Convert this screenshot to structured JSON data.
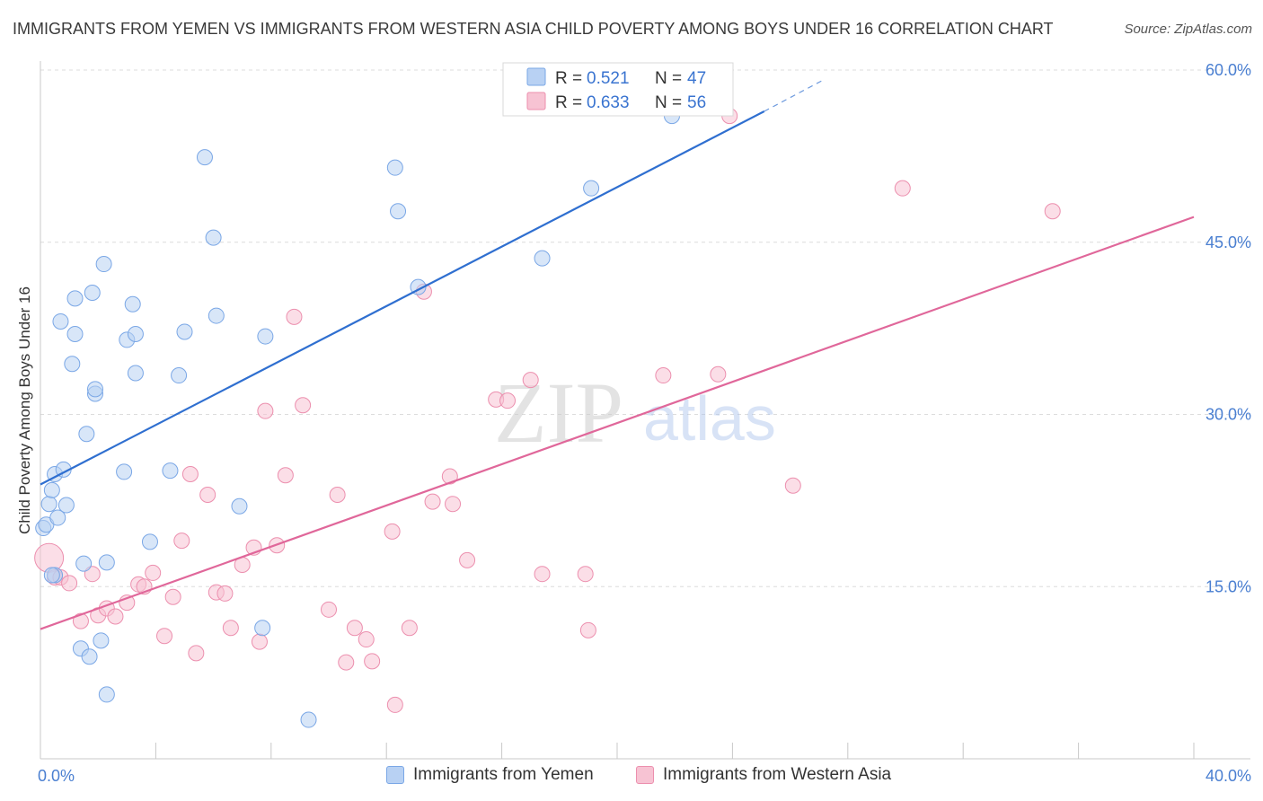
{
  "title": "IMMIGRANTS FROM YEMEN VS IMMIGRANTS FROM WESTERN ASIA CHILD POVERTY AMONG BOYS UNDER 16 CORRELATION CHART",
  "source": "Source: ZipAtlas.com",
  "watermark": {
    "zip": "ZIP",
    "atlas": "atlas"
  },
  "colors": {
    "blue_fill": "#b8d1f3",
    "blue_stroke": "#7aa7e6",
    "blue_line": "#2f6fd0",
    "pink_fill": "#f7c3d3",
    "pink_stroke": "#ec8fae",
    "pink_line": "#e0679a",
    "tick_text": "#4a7fd1",
    "grid": "#dcdcdc"
  },
  "legend": {
    "rows": [
      {
        "r_label": "R =",
        "r_value": "0.521",
        "n_label": "N =",
        "n_value": "47"
      },
      {
        "r_label": "R =",
        "r_value": "0.633",
        "n_label": "N =",
        "n_value": "56"
      }
    ]
  },
  "chart_data": {
    "type": "scatter",
    "title": "IMMIGRANTS FROM YEMEN VS IMMIGRANTS FROM WESTERN ASIA CHILD POVERTY AMONG BOYS UNDER 16 CORRELATION CHART",
    "xlabel": "",
    "ylabel": "Child Poverty Among Boys Under 16",
    "xlim": [
      0,
      40
    ],
    "ylim": [
      0,
      60
    ],
    "x_tick_labels": [
      {
        "value": 0,
        "label": "0.0%"
      },
      {
        "value": 40,
        "label": "40.0%"
      }
    ],
    "y_tick_labels": [
      {
        "value": 15,
        "label": "15.0%"
      },
      {
        "value": 30,
        "label": "30.0%"
      },
      {
        "value": 45,
        "label": "45.0%"
      },
      {
        "value": 60,
        "label": "60.0%"
      }
    ],
    "grid": true,
    "legend_position": "top-center",
    "series": [
      {
        "name": "Immigrants from Yemen",
        "color": "#7aa7e6",
        "r": 0.521,
        "n": 47,
        "trend": {
          "x": [
            0.0,
            25.1
          ],
          "y": [
            23.9,
            56.4
          ],
          "dashed_extension_to": [
            27.2,
            59.2
          ]
        },
        "points": [
          [
            0.1,
            20.1
          ],
          [
            0.2,
            20.4
          ],
          [
            0.3,
            22.2
          ],
          [
            0.4,
            23.4
          ],
          [
            0.5,
            24.8
          ],
          [
            0.5,
            16.0
          ],
          [
            0.6,
            21.0
          ],
          [
            0.7,
            38.1
          ],
          [
            0.8,
            25.2
          ],
          [
            0.9,
            22.1
          ],
          [
            1.1,
            34.4
          ],
          [
            1.2,
            37.0
          ],
          [
            1.2,
            40.1
          ],
          [
            1.4,
            9.6
          ],
          [
            1.5,
            17.0
          ],
          [
            1.6,
            28.3
          ],
          [
            1.7,
            8.9
          ],
          [
            1.8,
            40.6
          ],
          [
            1.9,
            31.8
          ],
          [
            1.9,
            32.2
          ],
          [
            2.1,
            10.3
          ],
          [
            2.2,
            43.1
          ],
          [
            2.3,
            17.1
          ],
          [
            2.3,
            5.6
          ],
          [
            2.9,
            25.0
          ],
          [
            3.0,
            36.5
          ],
          [
            3.2,
            39.6
          ],
          [
            3.3,
            37.0
          ],
          [
            3.3,
            33.6
          ],
          [
            3.8,
            18.9
          ],
          [
            4.5,
            25.1
          ],
          [
            4.8,
            33.4
          ],
          [
            5.0,
            37.2
          ],
          [
            5.7,
            52.4
          ],
          [
            6.0,
            45.4
          ],
          [
            6.1,
            38.6
          ],
          [
            6.9,
            22.0
          ],
          [
            7.7,
            11.4
          ],
          [
            7.8,
            36.8
          ],
          [
            9.3,
            3.4
          ],
          [
            12.3,
            51.5
          ],
          [
            12.4,
            47.7
          ],
          [
            13.1,
            41.1
          ],
          [
            17.4,
            43.6
          ],
          [
            19.1,
            49.7
          ],
          [
            21.9,
            56.0
          ],
          [
            0.4,
            16.0
          ]
        ]
      },
      {
        "name": "Immigrants from Western Asia",
        "color": "#ec8fae",
        "r": 0.633,
        "n": 56,
        "trend": {
          "x": [
            0.0,
            40.0
          ],
          "y": [
            11.3,
            47.2
          ]
        },
        "points": [
          [
            0.3,
            17.5
          ],
          [
            0.5,
            15.8
          ],
          [
            0.7,
            15.8
          ],
          [
            1.0,
            15.3
          ],
          [
            1.4,
            12.0
          ],
          [
            1.8,
            16.1
          ],
          [
            2.0,
            12.5
          ],
          [
            2.3,
            13.1
          ],
          [
            2.6,
            12.4
          ],
          [
            3.0,
            13.6
          ],
          [
            3.4,
            15.2
          ],
          [
            3.6,
            15.0
          ],
          [
            3.9,
            16.2
          ],
          [
            4.3,
            10.7
          ],
          [
            4.6,
            14.1
          ],
          [
            4.9,
            19.0
          ],
          [
            5.2,
            24.8
          ],
          [
            5.4,
            9.2
          ],
          [
            5.8,
            23.0
          ],
          [
            6.1,
            14.5
          ],
          [
            6.4,
            14.4
          ],
          [
            6.6,
            11.4
          ],
          [
            7.0,
            16.9
          ],
          [
            7.4,
            18.4
          ],
          [
            7.6,
            10.2
          ],
          [
            7.8,
            30.3
          ],
          [
            8.2,
            18.6
          ],
          [
            8.5,
            24.7
          ],
          [
            8.8,
            38.5
          ],
          [
            9.1,
            30.8
          ],
          [
            10.0,
            13.0
          ],
          [
            10.3,
            23.0
          ],
          [
            10.6,
            8.4
          ],
          [
            10.9,
            11.4
          ],
          [
            11.3,
            10.4
          ],
          [
            11.5,
            8.5
          ],
          [
            12.3,
            4.7
          ],
          [
            12.2,
            19.8
          ],
          [
            12.8,
            11.4
          ],
          [
            13.3,
            40.7
          ],
          [
            13.6,
            22.4
          ],
          [
            14.2,
            24.6
          ],
          [
            14.3,
            22.2
          ],
          [
            14.8,
            17.3
          ],
          [
            15.8,
            31.3
          ],
          [
            16.2,
            31.2
          ],
          [
            17.4,
            16.1
          ],
          [
            17.0,
            33.0
          ],
          [
            18.9,
            16.1
          ],
          [
            19.0,
            11.2
          ],
          [
            21.6,
            33.4
          ],
          [
            23.5,
            33.5
          ],
          [
            23.9,
            56.0
          ],
          [
            26.1,
            23.8
          ],
          [
            29.9,
            49.7
          ],
          [
            35.1,
            47.7
          ]
        ]
      }
    ]
  }
}
